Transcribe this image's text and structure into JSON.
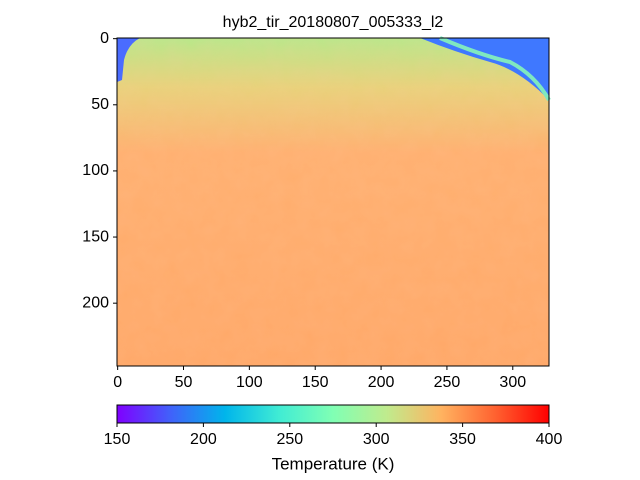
{
  "chart_data": {
    "type": "image",
    "title": "hyb2_tir_20180807_005333_l2",
    "xlim": [
      -0.5,
      327.5
    ],
    "ylim": [
      247.5,
      -0.5
    ],
    "xticks": [
      0,
      50,
      100,
      150,
      200,
      250,
      300
    ],
    "yticks": [
      0,
      50,
      100,
      150,
      200
    ],
    "colormap": "rainbow",
    "colorbar": {
      "label": "Temperature (K)",
      "lim": [
        150,
        400
      ],
      "ticks": [
        150,
        200,
        250,
        300,
        350,
        400
      ]
    }
  }
}
